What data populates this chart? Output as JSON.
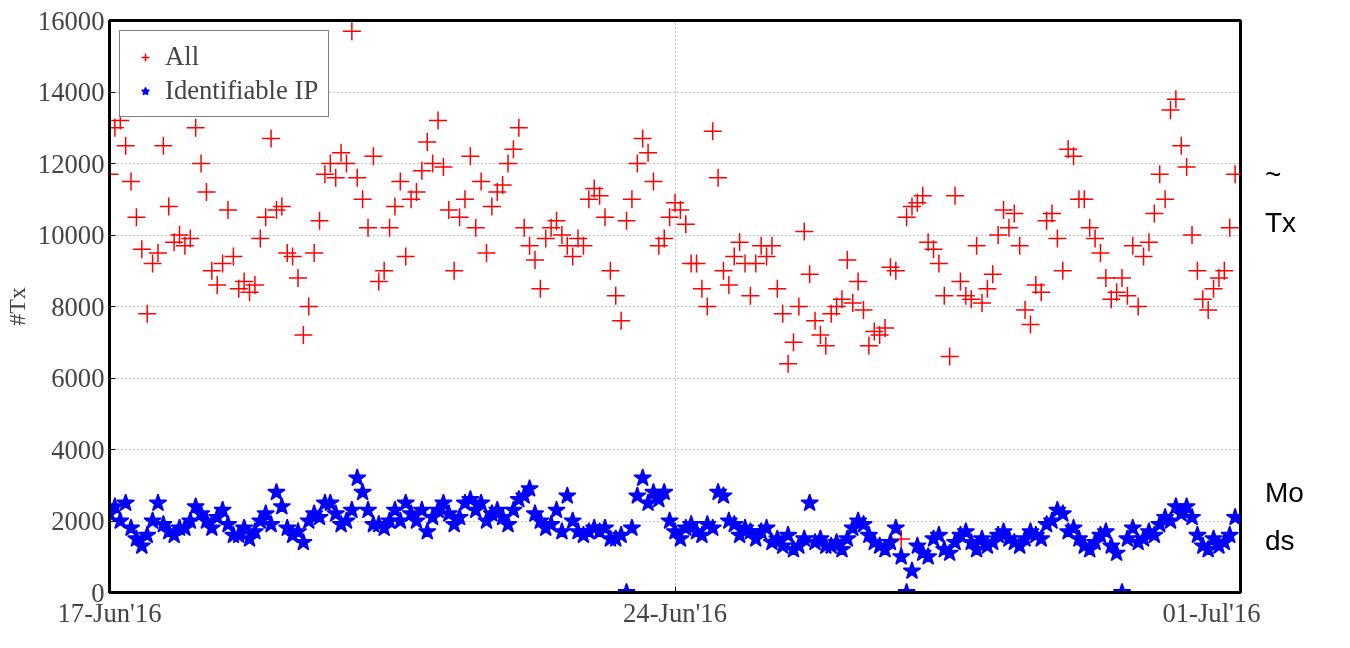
{
  "chart_data": {
    "type": "scatter",
    "ylabel": "#Tx",
    "ylim": [
      0,
      16000
    ],
    "yticks": [
      0,
      2000,
      4000,
      6000,
      8000,
      10000,
      12000,
      14000,
      16000
    ],
    "xlim": [
      "2016-06-17",
      "2016-07-01"
    ],
    "xticks": [
      {
        "value": "2016-06-17",
        "label": "17-Jun'16"
      },
      {
        "value": "2016-06-24",
        "label": "24-Jun'16"
      },
      {
        "value": "2016-07-01",
        "label": "01-Jul'16"
      }
    ],
    "grid": true,
    "legend": "top left",
    "annotations": [
      "~",
      "Tx",
      "Mo",
      "ds"
    ],
    "x": [
      "2016-06-17T00:00",
      "2016-06-17T01:36",
      "2016-06-17T03:12",
      "2016-06-17T04:48",
      "2016-06-17T06:24",
      "2016-06-17T08:00",
      "2016-06-17T09:36",
      "2016-06-17T11:12",
      "2016-06-17T12:48",
      "2016-06-17T14:24",
      "2016-06-17T16:00",
      "2016-06-17T17:36",
      "2016-06-17T19:12",
      "2016-06-17T20:48",
      "2016-06-17T22:24",
      "2016-06-18T00:00",
      "2016-06-18T01:36",
      "2016-06-18T03:12",
      "2016-06-18T04:48",
      "2016-06-18T06:24",
      "2016-06-18T08:00",
      "2016-06-18T09:36",
      "2016-06-18T11:12",
      "2016-06-18T12:48",
      "2016-06-18T14:24",
      "2016-06-18T16:00",
      "2016-06-18T17:36",
      "2016-06-18T19:12",
      "2016-06-18T20:48",
      "2016-06-18T22:24",
      "2016-06-19T00:00",
      "2016-06-19T01:36",
      "2016-06-19T03:12",
      "2016-06-19T04:48",
      "2016-06-19T06:24",
      "2016-06-19T08:00",
      "2016-06-19T09:36",
      "2016-06-19T11:12",
      "2016-06-19T12:48",
      "2016-06-19T14:24",
      "2016-06-19T16:00",
      "2016-06-19T17:36",
      "2016-06-19T19:12",
      "2016-06-19T20:48",
      "2016-06-19T22:24",
      "2016-06-20T00:00",
      "2016-06-20T01:36",
      "2016-06-20T03:12",
      "2016-06-20T04:48",
      "2016-06-20T06:24",
      "2016-06-20T08:00",
      "2016-06-20T09:36",
      "2016-06-20T11:12",
      "2016-06-20T12:48",
      "2016-06-20T14:24",
      "2016-06-20T16:00",
      "2016-06-20T17:36",
      "2016-06-20T19:12",
      "2016-06-20T20:48",
      "2016-06-20T22:24",
      "2016-06-21T00:00",
      "2016-06-21T01:36",
      "2016-06-21T03:12",
      "2016-06-21T04:48",
      "2016-06-21T06:24",
      "2016-06-21T08:00",
      "2016-06-21T09:36",
      "2016-06-21T11:12",
      "2016-06-21T12:48",
      "2016-06-21T14:24",
      "2016-06-21T16:00",
      "2016-06-21T17:36",
      "2016-06-21T19:12",
      "2016-06-21T20:48",
      "2016-06-21T22:24",
      "2016-06-22T00:00",
      "2016-06-22T01:36",
      "2016-06-22T03:12",
      "2016-06-22T04:48",
      "2016-06-22T06:24",
      "2016-06-22T08:00",
      "2016-06-22T09:36",
      "2016-06-22T11:12",
      "2016-06-22T12:48",
      "2016-06-22T14:24",
      "2016-06-22T16:00",
      "2016-06-22T17:36",
      "2016-06-22T19:12",
      "2016-06-22T20:48",
      "2016-06-22T22:24",
      "2016-06-23T00:00",
      "2016-06-23T01:36",
      "2016-06-23T03:12",
      "2016-06-23T04:48",
      "2016-06-23T06:24",
      "2016-06-23T08:00",
      "2016-06-23T09:36",
      "2016-06-23T11:12",
      "2016-06-23T12:48",
      "2016-06-23T14:24",
      "2016-06-23T16:00",
      "2016-06-23T17:36",
      "2016-06-23T19:12",
      "2016-06-23T20:48",
      "2016-06-23T22:24",
      "2016-06-24T00:00",
      "2016-06-24T01:36",
      "2016-06-24T03:12",
      "2016-06-24T04:48",
      "2016-06-24T06:24",
      "2016-06-24T08:00",
      "2016-06-24T09:36",
      "2016-06-24T11:12",
      "2016-06-24T12:48",
      "2016-06-24T14:24",
      "2016-06-24T16:00",
      "2016-06-24T17:36",
      "2016-06-24T19:12",
      "2016-06-24T20:48",
      "2016-06-24T22:24",
      "2016-06-25T00:00",
      "2016-06-25T01:36",
      "2016-06-25T03:12",
      "2016-06-25T04:48",
      "2016-06-25T06:24",
      "2016-06-25T08:00",
      "2016-06-25T09:36",
      "2016-06-25T11:12",
      "2016-06-25T12:48",
      "2016-06-25T14:24",
      "2016-06-25T16:00",
      "2016-06-25T17:36",
      "2016-06-25T19:12",
      "2016-06-25T20:48",
      "2016-06-25T22:24",
      "2016-06-26T00:00",
      "2016-06-26T01:36",
      "2016-06-26T03:12",
      "2016-06-26T04:48",
      "2016-06-26T06:24",
      "2016-06-26T08:00",
      "2016-06-26T09:36",
      "2016-06-26T11:12",
      "2016-06-26T12:48",
      "2016-06-26T14:24",
      "2016-06-26T16:00",
      "2016-06-26T17:36",
      "2016-06-26T19:12",
      "2016-06-26T20:48",
      "2016-06-26T22:24",
      "2016-06-27T00:00",
      "2016-06-27T01:36",
      "2016-06-27T03:12",
      "2016-06-27T04:48",
      "2016-06-27T06:24",
      "2016-06-27T08:00",
      "2016-06-27T09:36",
      "2016-06-27T11:12",
      "2016-06-27T12:48",
      "2016-06-27T14:24",
      "2016-06-27T16:00",
      "2016-06-27T17:36",
      "2016-06-27T19:12",
      "2016-06-27T20:48",
      "2016-06-27T22:24",
      "2016-06-28T00:00",
      "2016-06-28T01:36",
      "2016-06-28T03:12",
      "2016-06-28T04:48",
      "2016-06-28T06:24",
      "2016-06-28T08:00",
      "2016-06-28T09:36",
      "2016-06-28T11:12",
      "2016-06-28T12:48",
      "2016-06-28T14:24",
      "2016-06-28T16:00",
      "2016-06-28T17:36",
      "2016-06-28T19:12",
      "2016-06-28T20:48",
      "2016-06-28T22:24",
      "2016-06-29T00:00",
      "2016-06-29T01:36",
      "2016-06-29T03:12",
      "2016-06-29T04:48",
      "2016-06-29T06:24",
      "2016-06-29T08:00",
      "2016-06-29T09:36",
      "2016-06-29T11:12",
      "2016-06-29T12:48",
      "2016-06-29T14:24",
      "2016-06-29T16:00",
      "2016-06-29T17:36",
      "2016-06-29T19:12",
      "2016-06-29T20:48",
      "2016-06-29T22:24",
      "2016-06-30T00:00",
      "2016-06-30T01:36",
      "2016-06-30T03:12",
      "2016-06-30T04:48",
      "2016-06-30T06:24",
      "2016-06-30T08:00",
      "2016-06-30T09:36",
      "2016-06-30T11:12",
      "2016-06-30T12:48",
      "2016-06-30T14:24",
      "2016-06-30T16:00",
      "2016-06-30T17:36",
      "2016-06-30T19:12",
      "2016-06-30T20:48",
      "2016-06-30T22:24"
    ],
    "series": [
      {
        "name": "All",
        "color": "#ff0000",
        "marker": "cross",
        "values": [
          11700,
          13000,
          13200,
          12500,
          11500,
          10500,
          9600,
          7800,
          9200,
          9500,
          12500,
          10800,
          9800,
          10000,
          9700,
          9900,
          13000,
          12000,
          11200,
          9000,
          8600,
          9200,
          10700,
          9400,
          8500,
          8700,
          8400,
          8600,
          9900,
          10500,
          12700,
          10700,
          10800,
          9500,
          9400,
          8800,
          7200,
          8000,
          9500,
          10400,
          11700,
          12000,
          11600,
          12300,
          12000,
          15700,
          11600,
          11000,
          10200,
          12200,
          8700,
          9000,
          10200,
          10800,
          11500,
          9400,
          11000,
          11200,
          11800,
          12600,
          12000,
          13200,
          11900,
          10700,
          9000,
          10500,
          11000,
          12200,
          10200,
          11500,
          9500,
          10800,
          11200,
          11400,
          12000,
          12400,
          13000,
          10200,
          9700,
          9300,
          8500,
          9900,
          10200,
          10400,
          10000,
          9700,
          9400,
          9900,
          9700,
          11000,
          11300,
          11100,
          10500,
          9000,
          8300,
          7600,
          10400,
          11000,
          12000,
          12700,
          12300,
          11500,
          9700,
          9900,
          10500,
          10900,
          10700,
          10300,
          9200,
          9200,
          8500,
          8000,
          12900,
          11600,
          9000,
          8600,
          9400,
          9800,
          9200,
          8300,
          9200,
          9700,
          9400,
          9700,
          8500,
          7800,
          6400,
          7000,
          8000,
          10100,
          8900,
          7600,
          7200,
          6900,
          7800,
          8000,
          8200,
          9300,
          8100,
          8700,
          7900,
          6900,
          7300,
          7200,
          7400,
          9100,
          9000,
          1500,
          10500,
          10800,
          10900,
          11100,
          9800,
          9600,
          9200,
          8300,
          6600,
          11100,
          8700,
          8300,
          8200,
          9700,
          8100,
          8500,
          8900,
          10000,
          10700,
          10200,
          10600,
          9700,
          7900,
          7500,
          8600,
          8400,
          10400,
          10600,
          9900,
          9000,
          12400,
          12200,
          11000,
          11000,
          10200,
          9900,
          9500,
          8800,
          8200,
          8400,
          8800,
          8300,
          9700,
          8000,
          9400,
          9800,
          10600,
          11700,
          11000,
          13500,
          13800,
          12500,
          11900,
          10000,
          9000,
          8200,
          7900,
          8500,
          8800,
          9000,
          10200,
          11700
        ]
      },
      {
        "name": "Identifiable IP",
        "color": "#0000ff",
        "marker": "star",
        "values": [
          2200,
          2400,
          2000,
          2500,
          1800,
          1500,
          1300,
          1600,
          2000,
          2500,
          1900,
          1700,
          1600,
          1800,
          1800,
          2000,
          2400,
          2200,
          2000,
          1800,
          2100,
          2300,
          1900,
          1600,
          1600,
          1800,
          1500,
          1700,
          2000,
          2200,
          1900,
          2800,
          2400,
          1800,
          1600,
          1700,
          1400,
          2000,
          2200,
          2100,
          2500,
          2500,
          2200,
          1900,
          2000,
          2300,
          3200,
          2800,
          2300,
          1900,
          1900,
          1800,
          2000,
          2300,
          2000,
          2500,
          2200,
          2000,
          2300,
          1700,
          2100,
          2300,
          2500,
          2200,
          1900,
          2100,
          2500,
          2600,
          2300,
          2500,
          2000,
          2200,
          2300,
          2100,
          1900,
          2300,
          2600,
          2700,
          2900,
          2200,
          2000,
          1800,
          1900,
          2300,
          1700,
          2700,
          2000,
          1700,
          1600,
          1700,
          1800,
          1700,
          1800,
          1500,
          1500,
          1600,
          0,
          1800,
          2700,
          3200,
          2500,
          2800,
          2600,
          2800,
          2000,
          1700,
          1500,
          1800,
          1900,
          1700,
          1600,
          1900,
          1800,
          2800,
          2700,
          2000,
          1900,
          1600,
          1800,
          1700,
          1500,
          1700,
          1800,
          1400,
          1500,
          1300,
          1600,
          1200,
          1300,
          1500,
          2500,
          1400,
          1500,
          1300,
          1300,
          1400,
          1200,
          1500,
          1800,
          2000,
          1900,
          1600,
          1400,
          1300,
          1200,
          1400,
          1800,
          1000,
          0,
          600,
          1300,
          1100,
          1000,
          1500,
          1600,
          1200,
          1100,
          1400,
          1600,
          1700,
          1400,
          1200,
          1500,
          1300,
          1400,
          1600,
          1700,
          1500,
          1400,
          1300,
          1500,
          1700,
          1600,
          1500,
          1900,
          2000,
          2300,
          2200,
          1700,
          1800,
          1500,
          1300,
          1200,
          1400,
          1600,
          1700,
          1300,
          1100,
          0,
          1500,
          1800,
          1400,
          1500,
          1700,
          1600,
          1900,
          2100,
          2000,
          2400,
          2200,
          2400,
          2100,
          1600,
          1300,
          1200,
          1500,
          1300,
          1400,
          1600,
          2100
        ]
      }
    ]
  }
}
